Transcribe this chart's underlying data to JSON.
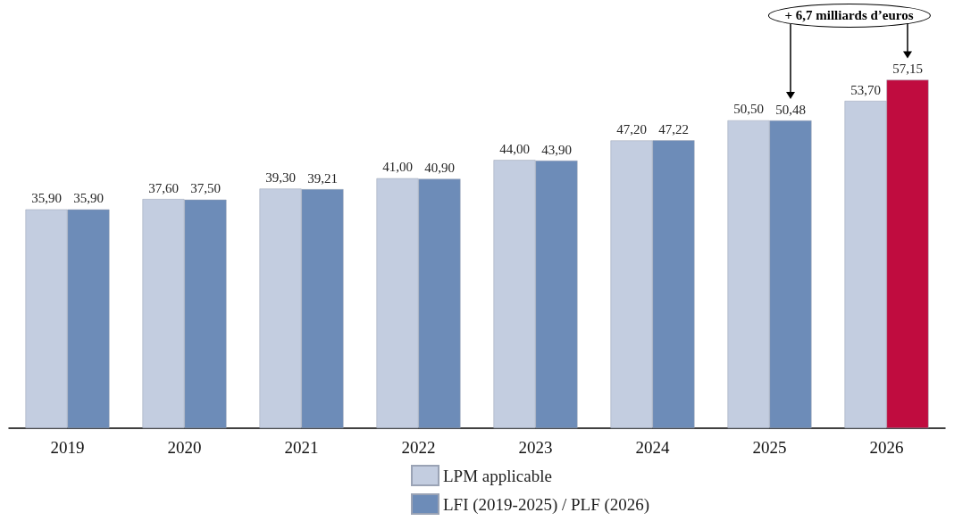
{
  "chart_data": {
    "type": "bar",
    "categories": [
      "2019",
      "2020",
      "2021",
      "2022",
      "2023",
      "2024",
      "2025",
      "2026"
    ],
    "series": [
      {
        "name": "LPM applicable",
        "color": "#c3cde0",
        "values": [
          35.9,
          37.6,
          39.3,
          41.0,
          44.0,
          47.2,
          50.5,
          53.7
        ],
        "value_labels": [
          "35,90",
          "37,60",
          "39,30",
          "41,00",
          "44,00",
          "47,20",
          "50,50",
          "53,70"
        ]
      },
      {
        "name": "LFI (2019-2025) / PLF (2026)",
        "color": "#6d8cb8",
        "colors": [
          "#6d8cb8",
          "#6d8cb8",
          "#6d8cb8",
          "#6d8cb8",
          "#6d8cb8",
          "#6d8cb8",
          "#6d8cb8",
          "#c00c3f"
        ],
        "values": [
          35.9,
          37.5,
          39.21,
          40.9,
          43.9,
          47.22,
          50.48,
          57.15
        ],
        "value_labels": [
          "35,90",
          "37,50",
          "39,21",
          "40,90",
          "43,90",
          "47,22",
          "50,48",
          "57,15"
        ]
      }
    ],
    "annotations": [
      "+ 6,7 milliards d’euros"
    ],
    "legend": "bottom",
    "grid": false
  }
}
